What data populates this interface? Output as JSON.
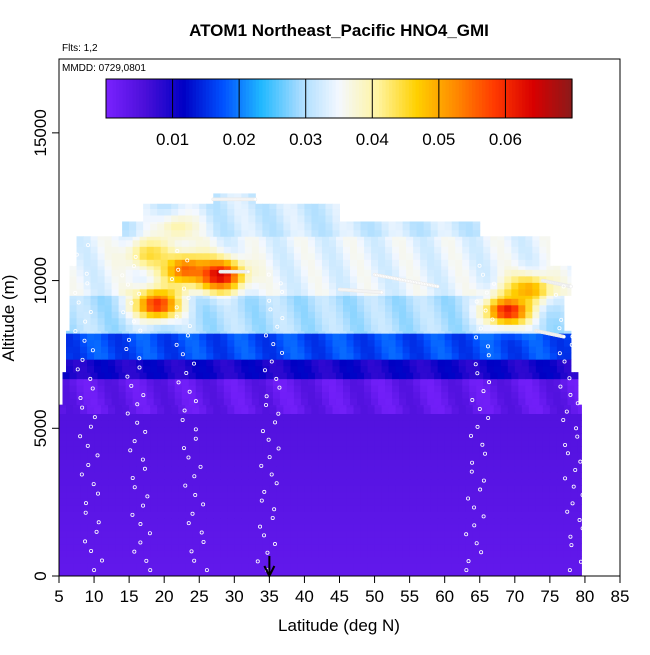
{
  "chart_data": {
    "type": "heatmap",
    "title": "ATOM1 Northeast_Pacific HNO4_GMI",
    "flights_label": "Flts: 1,2",
    "date_label": "MMDD: 0729,0801",
    "xlabel": "Latitude (deg N)",
    "ylabel": "Altitude (m)",
    "xlim": [
      5,
      85
    ],
    "ylim": [
      0,
      17500
    ],
    "x_ticks": [
      "5",
      "10",
      "15",
      "20",
      "25",
      "30",
      "35",
      "40",
      "45",
      "50",
      "55",
      "60",
      "65",
      "70",
      "75",
      "80",
      "85"
    ],
    "y_ticks": [
      "0",
      "5000",
      "10000",
      "15000"
    ],
    "colorbar": {
      "min": 0,
      "max": 0.07,
      "tick_labels": [
        "0.01",
        "0.02",
        "0.03",
        "0.04",
        "0.05",
        "0.06"
      ],
      "tick_values": [
        0.01,
        0.02,
        0.03,
        0.04,
        0.05,
        0.06
      ],
      "colors": [
        "#7a22ff",
        "#4b0fd9",
        "#0000c4",
        "#0050ff",
        "#20b8ff",
        "#a8dcff",
        "#f4f8ff",
        "#fff4a0",
        "#ffd000",
        "#ff8a00",
        "#ff3a00",
        "#d80000",
        "#8b1a1a"
      ]
    },
    "arrow_latitude": 35,
    "altitude_profile": [
      {
        "alt_min": 0,
        "alt_max": 6600,
        "value": 0.003
      },
      {
        "alt_min": 6600,
        "alt_max": 7300,
        "value": 0.01
      },
      {
        "alt_min": 7300,
        "alt_max": 8200,
        "value": 0.017
      },
      {
        "alt_min": 8200,
        "alt_max": 9500,
        "value": 0.03
      },
      {
        "alt_min": 9500,
        "alt_max": 11500,
        "value": 0.034
      },
      {
        "alt_min": 11500,
        "alt_max": 12900,
        "value": 0.032
      }
    ],
    "coverage_bands": [
      {
        "alt_min": 0,
        "alt_max": 5800,
        "lat_min": 5,
        "lat_max": 79.5
      },
      {
        "alt_min": 5800,
        "alt_max": 6900,
        "lat_min": 5.5,
        "lat_max": 79
      },
      {
        "alt_min": 6900,
        "alt_max": 8300,
        "lat_min": 6,
        "lat_max": 78
      },
      {
        "alt_min": 8300,
        "alt_max": 9500,
        "lat_min": 6.5,
        "lat_max": 77
      },
      {
        "alt_min": 9500,
        "alt_max": 10500,
        "lat_min": 6.5,
        "lat_max": 78
      },
      {
        "alt_min": 10500,
        "alt_max": 11500,
        "lat_min": 7.5,
        "lat_max": 75
      },
      {
        "alt_min": 11500,
        "alt_max": 12000,
        "lat_min": 14,
        "lat_max": 65
      },
      {
        "alt_min": 12000,
        "alt_max": 12600,
        "lat_min": 17,
        "lat_max": 45
      },
      {
        "alt_min": 12600,
        "alt_max": 12950,
        "lat_min": 27,
        "lat_max": 33
      }
    ],
    "hotspots": [
      {
        "lat": 23,
        "alt": 10400,
        "value": 0.055
      },
      {
        "lat": 28,
        "alt": 10200,
        "value": 0.065
      },
      {
        "lat": 19,
        "alt": 9200,
        "value": 0.06
      },
      {
        "lat": 69,
        "alt": 9000,
        "value": 0.062
      },
      {
        "lat": 72,
        "alt": 9700,
        "value": 0.05
      },
      {
        "lat": 18,
        "alt": 10900,
        "value": 0.045
      },
      {
        "lat": 22,
        "alt": 11800,
        "value": 0.04
      }
    ],
    "flight_tracks": [
      {
        "lat_start": 27,
        "lat_end": 33,
        "alt_start": 12750,
        "alt_end": 12750
      },
      {
        "lat_start": 45,
        "lat_end": 51,
        "alt_start": 9700,
        "alt_end": 9600
      },
      {
        "lat_start": 50,
        "lat_end": 59,
        "alt_start": 10200,
        "alt_end": 9800
      },
      {
        "lat_start": 74,
        "lat_end": 78,
        "alt_start": 10000,
        "alt_end": 9800
      },
      {
        "lat_start": 73,
        "lat_end": 77,
        "alt_start": 8300,
        "alt_end": 8100
      },
      {
        "lat_start": 28,
        "lat_end": 32,
        "alt_start": 10300,
        "alt_end": 10300
      }
    ],
    "flight_profiles": [
      {
        "lat_bottom": 10,
        "lat_top": 8,
        "alt_max": 11200
      },
      {
        "lat_bottom": 17,
        "lat_top": 15,
        "alt_max": 10800
      },
      {
        "lat_bottom": 25,
        "lat_top": 22,
        "alt_max": 11000
      },
      {
        "lat_bottom": 34.5,
        "lat_top": 36,
        "alt_max": 10200
      },
      {
        "lat_bottom": 64,
        "lat_top": 66,
        "alt_max": 10500
      },
      {
        "lat_bottom": 79,
        "lat_top": 77,
        "alt_max": 9800
      }
    ]
  }
}
